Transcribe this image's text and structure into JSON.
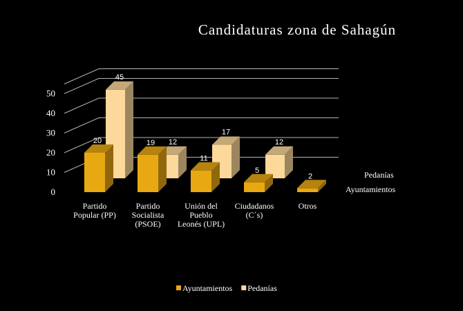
{
  "chart_data": {
    "type": "bar",
    "title": "Candidaturas zona de Sahagún",
    "categories": [
      "Partido Popular (PP)",
      "Partido Socialista (PSOE)",
      "Unión del Pueblo Leonés (UPL)",
      "Ciudadanos (C´s)",
      "Otros"
    ],
    "series": [
      {
        "name": "Ayuntamientos",
        "values": [
          20,
          19,
          11,
          5,
          2
        ]
      },
      {
        "name": "Pedanías",
        "values": [
          45,
          12,
          17,
          12,
          null
        ]
      }
    ],
    "ylim": [
      0,
      50
    ],
    "yticks": [
      0,
      10,
      20,
      30,
      40,
      50
    ],
    "xlabel": "",
    "ylabel": "",
    "grid": true,
    "legend": "bottom",
    "colors": {
      "Ayuntamientos": "#E8A812",
      "Pedanías": "#FCD89A",
      "grid": "#B5B5B5",
      "text": "#FFFFFF",
      "background": "#000000"
    }
  }
}
